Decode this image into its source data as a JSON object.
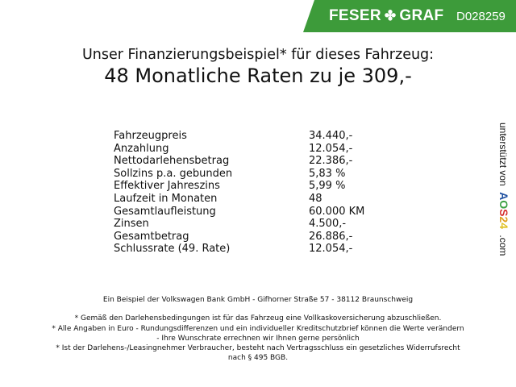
{
  "header": {
    "brand": "FESER",
    "brand2": "GRAF",
    "code": "D028259",
    "color": "#3d9b3a"
  },
  "title": {
    "line1": "Unser Finanzierungsbeispiel* für dieses Fahrzeug:",
    "line2": "48 Monatliche Raten zu je 309,-"
  },
  "rows": [
    {
      "label": "Fahrzeugpreis",
      "value": "34.440,-"
    },
    {
      "label": "Anzahlung",
      "value": "12.054,-"
    },
    {
      "label": "Nettodarlehensbetrag",
      "value": "22.386,-"
    },
    {
      "label": "Sollzins p.a. gebunden",
      "value": "5,83 %"
    },
    {
      "label": "Effektiver Jahreszins",
      "value": "5,99 %"
    },
    {
      "label": "Laufzeit in Monaten",
      "value": "48"
    },
    {
      "label": "Gesamtlaufleistung",
      "value": "60.000 KM"
    },
    {
      "label": "Zinsen",
      "value": "4.500,-"
    },
    {
      "label": "Gesamtbetrag",
      "value": "26.886,-"
    },
    {
      "label": "Schlussrate (49. Rate)",
      "value": "12.054,-"
    }
  ],
  "side": {
    "prefix": "unterstützt von",
    "logo": "AOS24",
    "suffix": ".com"
  },
  "footer": {
    "bank": "Ein Beispiel der Volkswagen Bank GmbH - Gifhorner Straße 57 - 38112 Braunschweig",
    "note1": "* Gemäß den Darlehensbedingungen ist für das Fahrzeug eine Vollkaskoversicherung abzuschließen.",
    "note2a": "* Alle Angaben in Euro - Rundungsdifferenzen und ein individueller Kreditschutzbrief können die Werte verändern",
    "note2b": "- Ihre Wunschrate errechnen wir Ihnen gerne persönlich",
    "note3a": "* Ist der Darlehens-/Leasingnehmer Verbraucher, besteht nach Vertragsschluss ein gesetzliches Widerrufsrecht",
    "note3b": "nach § 495 BGB."
  }
}
